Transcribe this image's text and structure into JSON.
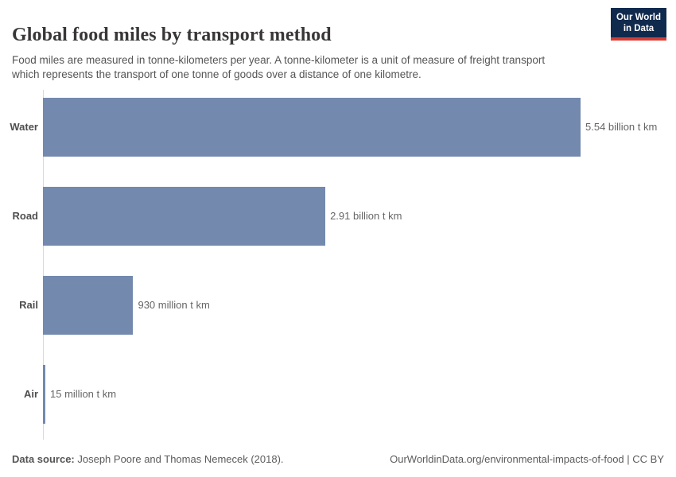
{
  "header": {
    "title": "Global food miles by transport method",
    "subtitle": "Food miles are measured in tonne-kilometers per year. A tonne-kilometer is a unit of measure of freight transport which represents the transport of one tonne of goods over a distance of one kilometre.",
    "logo": {
      "line1": "Our World",
      "line2": "in Data",
      "bg_color": "#102a4e",
      "accent_color": "#d73c34"
    }
  },
  "chart_data": {
    "type": "bar",
    "orientation": "horizontal",
    "title": "Global food miles by transport method",
    "unit": "t km",
    "categories": [
      "Water",
      "Road",
      "Rail",
      "Air"
    ],
    "values_billion_tkm": [
      5.54,
      2.91,
      0.93,
      0.015
    ],
    "value_labels": [
      "5.54 billion t km",
      "2.91 billion t km",
      "930 million t km",
      "15 million t km"
    ],
    "xlim": [
      0,
      5.54
    ],
    "grid": false,
    "legend": "none",
    "bar_color": "#7389ae",
    "axis_color": "#d9d9d9"
  },
  "footer": {
    "source_label": "Data source:",
    "source_text": " Joseph Poore and Thomas Nemecek (2018).",
    "credit": "OurWorldinData.org/environmental-impacts-of-food | CC BY"
  }
}
